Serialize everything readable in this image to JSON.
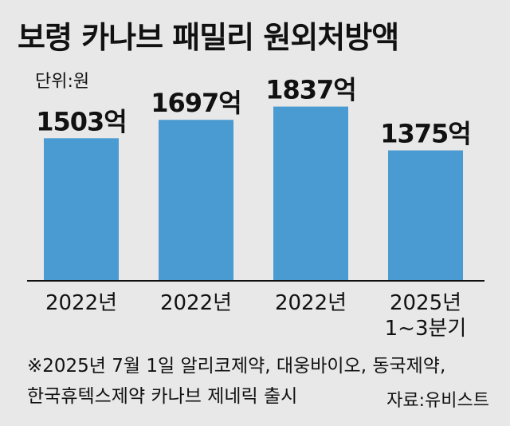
{
  "title": "보령 카나브 패밀리 원외처방액",
  "unit_label": "단위:원",
  "notes": [
    "※2025년 7월 1일 알리코제약, 대웅바이오, 동국제약,",
    "한국휴텍스제약 카나브 제네릭 출시"
  ],
  "source": "자료:유비스트",
  "chart_data": {
    "type": "bar",
    "title": "보령 카나브 패밀리 원외처방액",
    "categories": [
      [
        "2022년"
      ],
      [
        "2022년"
      ],
      [
        "2022년"
      ],
      [
        "2025년",
        "1~3분기"
      ]
    ],
    "values": [
      1503,
      1697,
      1837,
      1375
    ],
    "value_labels": [
      "1503억",
      "1697억",
      "1837억",
      "1375억"
    ],
    "unit": "단위:원",
    "bar_color": "#4a9bd1",
    "ylim": [
      0,
      2000
    ],
    "grid": false,
    "legend": "none"
  }
}
